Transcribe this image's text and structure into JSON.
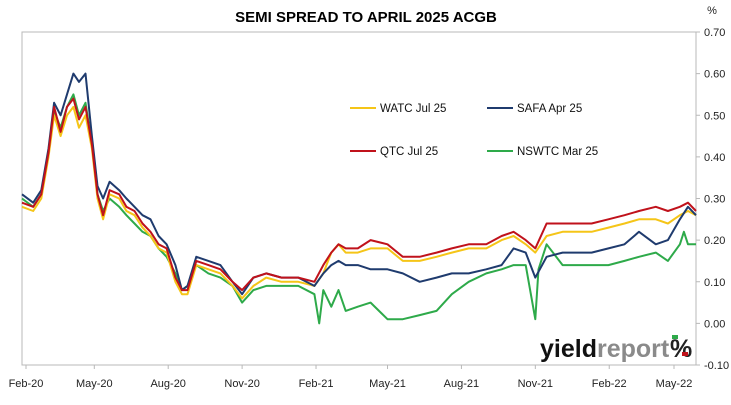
{
  "chart_data": {
    "type": "line",
    "title": "SEMI SPREAD TO APRIL 2025 ACGB",
    "y_unit": "%",
    "ylim": [
      -0.1,
      0.7
    ],
    "y_ticks": [
      "0.70",
      "0.60",
      "0.50",
      "0.40",
      "0.30",
      "0.20",
      "0.10",
      "0.00",
      "-0.10"
    ],
    "x_ticks": [
      "Feb-20",
      "May-20",
      "Aug-20",
      "Nov-20",
      "Feb-21",
      "May-21",
      "Aug-21",
      "Nov-21",
      "Feb-22",
      "May-22"
    ],
    "x_range": [
      "2020-02-01",
      "2022-05-20"
    ],
    "grid": false,
    "legend_position": "upper-right",
    "series": [
      {
        "name": "WATC Jul 25",
        "color": "#f5c518",
        "points": [
          [
            "2020-02-01",
            0.28
          ],
          [
            "2020-02-15",
            0.27
          ],
          [
            "2020-02-25",
            0.3
          ],
          [
            "2020-03-05",
            0.4
          ],
          [
            "2020-03-12",
            0.5
          ],
          [
            "2020-03-20",
            0.45
          ],
          [
            "2020-03-28",
            0.5
          ],
          [
            "2020-04-05",
            0.52
          ],
          [
            "2020-04-12",
            0.47
          ],
          [
            "2020-04-20",
            0.5
          ],
          [
            "2020-04-28",
            0.42
          ],
          [
            "2020-05-05",
            0.3
          ],
          [
            "2020-05-12",
            0.25
          ],
          [
            "2020-05-20",
            0.31
          ],
          [
            "2020-06-01",
            0.3
          ],
          [
            "2020-06-10",
            0.27
          ],
          [
            "2020-06-20",
            0.26
          ],
          [
            "2020-06-30",
            0.23
          ],
          [
            "2020-07-10",
            0.21
          ],
          [
            "2020-07-20",
            0.18
          ],
          [
            "2020-07-30",
            0.17
          ],
          [
            "2020-08-10",
            0.1
          ],
          [
            "2020-08-18",
            0.07
          ],
          [
            "2020-08-25",
            0.07
          ],
          [
            "2020-09-05",
            0.14
          ],
          [
            "2020-09-20",
            0.13
          ],
          [
            "2020-10-05",
            0.12
          ],
          [
            "2020-10-20",
            0.09
          ],
          [
            "2020-11-01",
            0.06
          ],
          [
            "2020-11-15",
            0.09
          ],
          [
            "2020-12-01",
            0.11
          ],
          [
            "2020-12-20",
            0.1
          ],
          [
            "2021-01-10",
            0.1
          ],
          [
            "2021-01-30",
            0.09
          ],
          [
            "2021-02-10",
            0.12
          ],
          [
            "2021-02-20",
            0.17
          ],
          [
            "2021-03-01",
            0.19
          ],
          [
            "2021-03-10",
            0.17
          ],
          [
            "2021-03-25",
            0.17
          ],
          [
            "2021-04-10",
            0.18
          ],
          [
            "2021-05-01",
            0.18
          ],
          [
            "2021-05-20",
            0.15
          ],
          [
            "2021-06-10",
            0.15
          ],
          [
            "2021-07-01",
            0.16
          ],
          [
            "2021-07-20",
            0.17
          ],
          [
            "2021-08-10",
            0.18
          ],
          [
            "2021-09-01",
            0.18
          ],
          [
            "2021-09-20",
            0.2
          ],
          [
            "2021-10-05",
            0.21
          ],
          [
            "2021-10-20",
            0.19
          ],
          [
            "2021-11-01",
            0.17
          ],
          [
            "2021-11-15",
            0.21
          ],
          [
            "2021-12-05",
            0.22
          ],
          [
            "2021-12-20",
            0.22
          ],
          [
            "2022-01-10",
            0.22
          ],
          [
            "2022-01-31",
            0.23
          ],
          [
            "2022-02-20",
            0.24
          ],
          [
            "2022-03-10",
            0.25
          ],
          [
            "2022-03-31",
            0.25
          ],
          [
            "2022-04-15",
            0.24
          ],
          [
            "2022-04-30",
            0.26
          ],
          [
            "2022-05-10",
            0.27
          ],
          [
            "2022-05-20",
            0.26
          ]
        ]
      },
      {
        "name": "SAFA Apr 25",
        "color": "#1f3b6e",
        "points": [
          [
            "2020-02-01",
            0.31
          ],
          [
            "2020-02-15",
            0.29
          ],
          [
            "2020-02-25",
            0.32
          ],
          [
            "2020-03-05",
            0.42
          ],
          [
            "2020-03-12",
            0.53
          ],
          [
            "2020-03-20",
            0.5
          ],
          [
            "2020-03-28",
            0.55
          ],
          [
            "2020-04-05",
            0.6
          ],
          [
            "2020-04-12",
            0.58
          ],
          [
            "2020-04-20",
            0.6
          ],
          [
            "2020-04-28",
            0.45
          ],
          [
            "2020-05-05",
            0.33
          ],
          [
            "2020-05-12",
            0.3
          ],
          [
            "2020-05-20",
            0.34
          ],
          [
            "2020-06-01",
            0.32
          ],
          [
            "2020-06-10",
            0.3
          ],
          [
            "2020-06-20",
            0.28
          ],
          [
            "2020-06-30",
            0.26
          ],
          [
            "2020-07-10",
            0.25
          ],
          [
            "2020-07-20",
            0.21
          ],
          [
            "2020-07-30",
            0.19
          ],
          [
            "2020-08-10",
            0.14
          ],
          [
            "2020-08-18",
            0.08
          ],
          [
            "2020-08-25",
            0.09
          ],
          [
            "2020-09-05",
            0.16
          ],
          [
            "2020-09-20",
            0.15
          ],
          [
            "2020-10-05",
            0.14
          ],
          [
            "2020-10-20",
            0.1
          ],
          [
            "2020-11-01",
            0.07
          ],
          [
            "2020-11-15",
            0.11
          ],
          [
            "2020-12-01",
            0.12
          ],
          [
            "2020-12-20",
            0.11
          ],
          [
            "2021-01-10",
            0.11
          ],
          [
            "2021-01-30",
            0.09
          ],
          [
            "2021-02-10",
            0.12
          ],
          [
            "2021-02-20",
            0.14
          ],
          [
            "2021-03-01",
            0.15
          ],
          [
            "2021-03-10",
            0.14
          ],
          [
            "2021-03-25",
            0.14
          ],
          [
            "2021-04-10",
            0.13
          ],
          [
            "2021-05-01",
            0.13
          ],
          [
            "2021-05-20",
            0.12
          ],
          [
            "2021-06-10",
            0.1
          ],
          [
            "2021-07-01",
            0.11
          ],
          [
            "2021-07-20",
            0.12
          ],
          [
            "2021-08-10",
            0.12
          ],
          [
            "2021-09-01",
            0.13
          ],
          [
            "2021-09-20",
            0.14
          ],
          [
            "2021-10-05",
            0.18
          ],
          [
            "2021-10-20",
            0.17
          ],
          [
            "2021-11-01",
            0.11
          ],
          [
            "2021-11-15",
            0.16
          ],
          [
            "2021-12-05",
            0.17
          ],
          [
            "2021-12-20",
            0.17
          ],
          [
            "2022-01-10",
            0.17
          ],
          [
            "2022-01-31",
            0.18
          ],
          [
            "2022-02-20",
            0.19
          ],
          [
            "2022-03-10",
            0.22
          ],
          [
            "2022-03-31",
            0.19
          ],
          [
            "2022-04-15",
            0.2
          ],
          [
            "2022-04-30",
            0.25
          ],
          [
            "2022-05-10",
            0.28
          ],
          [
            "2022-05-20",
            0.26
          ]
        ]
      },
      {
        "name": "QTC Jul 25",
        "color": "#c0121b",
        "points": [
          [
            "2020-02-01",
            0.29
          ],
          [
            "2020-02-15",
            0.28
          ],
          [
            "2020-02-25",
            0.31
          ],
          [
            "2020-03-05",
            0.41
          ],
          [
            "2020-03-12",
            0.52
          ],
          [
            "2020-03-20",
            0.46
          ],
          [
            "2020-03-28",
            0.52
          ],
          [
            "2020-04-05",
            0.54
          ],
          [
            "2020-04-12",
            0.49
          ],
          [
            "2020-04-20",
            0.52
          ],
          [
            "2020-04-28",
            0.43
          ],
          [
            "2020-05-05",
            0.31
          ],
          [
            "2020-05-12",
            0.26
          ],
          [
            "2020-05-20",
            0.32
          ],
          [
            "2020-06-01",
            0.31
          ],
          [
            "2020-06-10",
            0.28
          ],
          [
            "2020-06-20",
            0.27
          ],
          [
            "2020-06-30",
            0.24
          ],
          [
            "2020-07-10",
            0.22
          ],
          [
            "2020-07-20",
            0.19
          ],
          [
            "2020-07-30",
            0.18
          ],
          [
            "2020-08-10",
            0.11
          ],
          [
            "2020-08-18",
            0.08
          ],
          [
            "2020-08-25",
            0.08
          ],
          [
            "2020-09-05",
            0.15
          ],
          [
            "2020-09-20",
            0.14
          ],
          [
            "2020-10-05",
            0.13
          ],
          [
            "2020-10-20",
            0.1
          ],
          [
            "2020-11-01",
            0.08
          ],
          [
            "2020-11-15",
            0.11
          ],
          [
            "2020-12-01",
            0.12
          ],
          [
            "2020-12-20",
            0.11
          ],
          [
            "2021-01-10",
            0.11
          ],
          [
            "2021-01-30",
            0.1
          ],
          [
            "2021-02-10",
            0.14
          ],
          [
            "2021-02-20",
            0.17
          ],
          [
            "2021-03-01",
            0.19
          ],
          [
            "2021-03-10",
            0.18
          ],
          [
            "2021-03-25",
            0.18
          ],
          [
            "2021-04-10",
            0.2
          ],
          [
            "2021-05-01",
            0.19
          ],
          [
            "2021-05-20",
            0.16
          ],
          [
            "2021-06-10",
            0.16
          ],
          [
            "2021-07-01",
            0.17
          ],
          [
            "2021-07-20",
            0.18
          ],
          [
            "2021-08-10",
            0.19
          ],
          [
            "2021-09-01",
            0.19
          ],
          [
            "2021-09-20",
            0.21
          ],
          [
            "2021-10-05",
            0.22
          ],
          [
            "2021-10-20",
            0.2
          ],
          [
            "2021-11-01",
            0.18
          ],
          [
            "2021-11-15",
            0.24
          ],
          [
            "2021-12-05",
            0.24
          ],
          [
            "2021-12-20",
            0.24
          ],
          [
            "2022-01-10",
            0.24
          ],
          [
            "2022-01-31",
            0.25
          ],
          [
            "2022-02-20",
            0.26
          ],
          [
            "2022-03-10",
            0.27
          ],
          [
            "2022-03-31",
            0.28
          ],
          [
            "2022-04-15",
            0.27
          ],
          [
            "2022-04-30",
            0.28
          ],
          [
            "2022-05-10",
            0.29
          ],
          [
            "2022-05-20",
            0.27
          ]
        ]
      },
      {
        "name": "NSWTC Mar 25",
        "color": "#2eaa4a",
        "points": [
          [
            "2020-02-01",
            0.3
          ],
          [
            "2020-02-15",
            0.28
          ],
          [
            "2020-02-25",
            0.31
          ],
          [
            "2020-03-05",
            0.41
          ],
          [
            "2020-03-12",
            0.51
          ],
          [
            "2020-03-20",
            0.47
          ],
          [
            "2020-03-28",
            0.52
          ],
          [
            "2020-04-05",
            0.55
          ],
          [
            "2020-04-12",
            0.5
          ],
          [
            "2020-04-20",
            0.53
          ],
          [
            "2020-04-28",
            0.43
          ],
          [
            "2020-05-05",
            0.31
          ],
          [
            "2020-05-12",
            0.27
          ],
          [
            "2020-05-20",
            0.3
          ],
          [
            "2020-06-01",
            0.28
          ],
          [
            "2020-06-10",
            0.26
          ],
          [
            "2020-06-20",
            0.24
          ],
          [
            "2020-06-30",
            0.22
          ],
          [
            "2020-07-10",
            0.21
          ],
          [
            "2020-07-20",
            0.18
          ],
          [
            "2020-07-30",
            0.16
          ],
          [
            "2020-08-10",
            0.12
          ],
          [
            "2020-08-18",
            0.08
          ],
          [
            "2020-08-25",
            0.09
          ],
          [
            "2020-09-05",
            0.14
          ],
          [
            "2020-09-20",
            0.12
          ],
          [
            "2020-10-05",
            0.11
          ],
          [
            "2020-10-20",
            0.09
          ],
          [
            "2020-11-01",
            0.05
          ],
          [
            "2020-11-15",
            0.08
          ],
          [
            "2020-12-01",
            0.09
          ],
          [
            "2020-12-20",
            0.09
          ],
          [
            "2021-01-10",
            0.09
          ],
          [
            "2021-01-30",
            0.07
          ],
          [
            "2021-02-05",
            0.0
          ],
          [
            "2021-02-10",
            0.08
          ],
          [
            "2021-02-20",
            0.04
          ],
          [
            "2021-03-01",
            0.08
          ],
          [
            "2021-03-10",
            0.03
          ],
          [
            "2021-03-25",
            0.04
          ],
          [
            "2021-04-10",
            0.05
          ],
          [
            "2021-05-01",
            0.01
          ],
          [
            "2021-05-20",
            0.01
          ],
          [
            "2021-06-10",
            0.02
          ],
          [
            "2021-07-01",
            0.03
          ],
          [
            "2021-07-20",
            0.07
          ],
          [
            "2021-08-10",
            0.1
          ],
          [
            "2021-09-01",
            0.12
          ],
          [
            "2021-09-20",
            0.13
          ],
          [
            "2021-10-05",
            0.14
          ],
          [
            "2021-10-20",
            0.14
          ],
          [
            "2021-11-01",
            0.01
          ],
          [
            "2021-11-05",
            0.13
          ],
          [
            "2021-11-15",
            0.19
          ],
          [
            "2021-12-05",
            0.14
          ],
          [
            "2021-12-20",
            0.14
          ],
          [
            "2022-01-10",
            0.14
          ],
          [
            "2022-01-31",
            0.14
          ],
          [
            "2022-02-20",
            0.15
          ],
          [
            "2022-03-10",
            0.16
          ],
          [
            "2022-03-31",
            0.17
          ],
          [
            "2022-04-15",
            0.15
          ],
          [
            "2022-04-30",
            0.19
          ],
          [
            "2022-05-05",
            0.22
          ],
          [
            "2022-05-10",
            0.19
          ],
          [
            "2022-05-20",
            0.19
          ]
        ]
      }
    ]
  },
  "brand": {
    "prefix": "yield",
    "suffix": "report",
    "mark": "%"
  }
}
